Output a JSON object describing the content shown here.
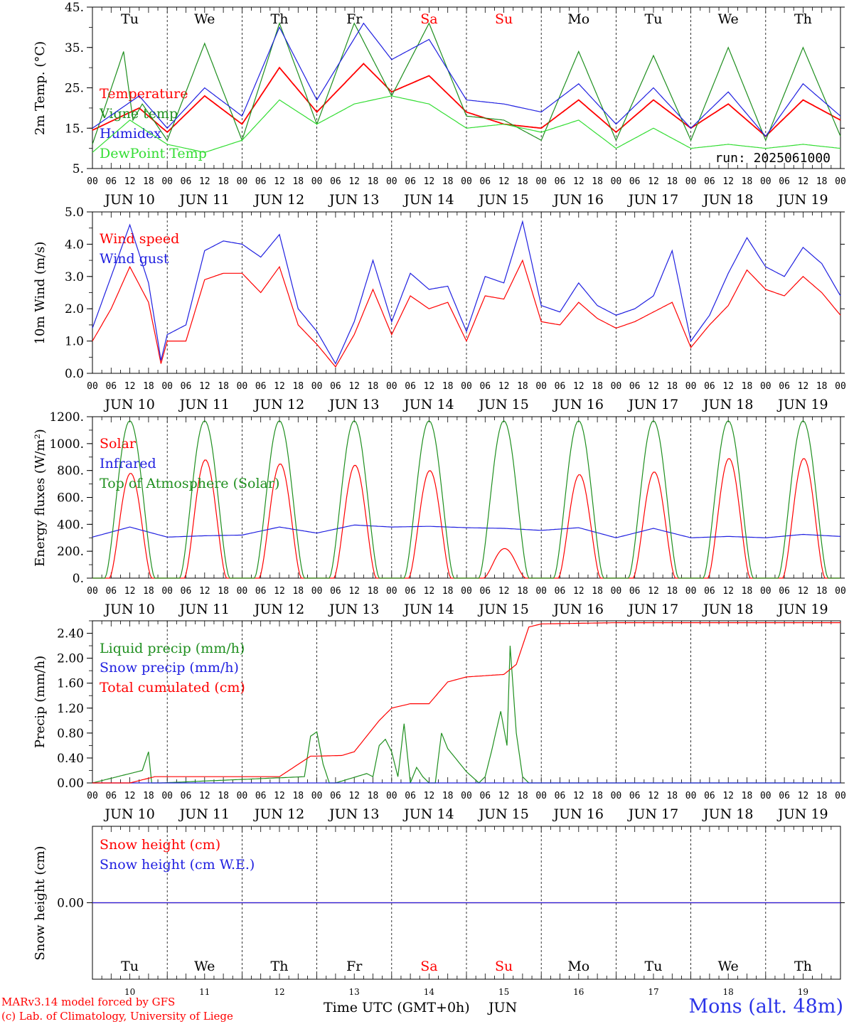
{
  "run": "run: 2025061000",
  "station": "Mons (alt. 48m)",
  "credits": [
    "MARv3.14 model forced by GFS",
    "(c) Lab. of Climatology, University of Liege"
  ],
  "time_axis_label": "Time UTC (GMT+0h)",
  "month_label": "JUN",
  "days": [
    {
      "abbr": "Tu",
      "date_label": "JUN 10",
      "num": "10",
      "weekend": false
    },
    {
      "abbr": "We",
      "date_label": "JUN 11",
      "num": "11",
      "weekend": false
    },
    {
      "abbr": "Th",
      "date_label": "JUN 12",
      "num": "12",
      "weekend": false
    },
    {
      "abbr": "Fr",
      "date_label": "JUN 13",
      "num": "13",
      "weekend": false
    },
    {
      "abbr": "Sa",
      "date_label": "JUN 14",
      "num": "14",
      "weekend": true
    },
    {
      "abbr": "Su",
      "date_label": "JUN 15",
      "num": "15",
      "weekend": true
    },
    {
      "abbr": "Mo",
      "date_label": "JUN 16",
      "num": "16",
      "weekend": false
    },
    {
      "abbr": "Tu",
      "date_label": "JUN 17",
      "num": "17",
      "weekend": false
    },
    {
      "abbr": "We",
      "date_label": "JUN 18",
      "num": "18",
      "weekend": false
    },
    {
      "abbr": "Th",
      "date_label": "JUN 19",
      "num": "19",
      "weekend": false
    }
  ],
  "hour_labels": [
    "00",
    "06",
    "12",
    "18"
  ],
  "colors": {
    "red": "#ff0000",
    "green": "#1f8f1f",
    "blue": "#2020e0",
    "lightgreen": "#33dd33",
    "weekend": "#ff0000"
  },
  "chart_data": [
    {
      "type": "line",
      "ylabel": "2m Temp. (°C)",
      "ylim": [
        5,
        45
      ],
      "yticks": [
        "5.",
        "15.",
        "25.",
        "35.",
        "45."
      ],
      "ytick_values": [
        5,
        15,
        25,
        35,
        45
      ],
      "x_start": "2025-06-10 00:00 UTC",
      "x_end": "2025-06-20 00:00 UTC",
      "legend_position": "left",
      "series": [
        {
          "name": "Temperature",
          "color": "#ff0000",
          "x": [
            0,
            15,
            24,
            36,
            48,
            60,
            72,
            87,
            96,
            108,
            120,
            132,
            144,
            156,
            168,
            180,
            192,
            204,
            216,
            228,
            240
          ],
          "y": [
            14.5,
            20,
            14,
            23,
            16,
            30,
            19,
            31,
            24,
            28,
            19,
            16,
            15,
            22,
            14,
            22,
            15,
            21,
            13,
            22,
            17
          ]
        },
        {
          "name": "Vigne temp",
          "color": "#1f8f1f",
          "x": [
            0,
            10,
            13,
            16,
            24,
            36,
            48,
            60,
            72,
            84,
            96,
            108,
            120,
            132,
            144,
            156,
            168,
            180,
            192,
            204,
            216,
            228,
            240
          ],
          "y": [
            11,
            34,
            17,
            21,
            12,
            36,
            12,
            41,
            16,
            41,
            23,
            41,
            18,
            17,
            12,
            34,
            12,
            33,
            12,
            35,
            12,
            35,
            13
          ]
        },
        {
          "name": "Humidex",
          "color": "#2020e0",
          "x": [
            0,
            15,
            24,
            36,
            48,
            60,
            72,
            87,
            96,
            108,
            120,
            132,
            144,
            156,
            168,
            180,
            192,
            204,
            216,
            228,
            240
          ],
          "y": [
            15,
            23,
            15,
            25,
            18,
            40,
            22,
            41,
            32,
            37,
            22,
            21,
            19,
            26,
            16,
            25,
            15,
            24,
            13,
            26,
            18
          ]
        },
        {
          "name": "DewPoint Temp",
          "color": "#33dd33",
          "x": [
            0,
            12,
            24,
            36,
            48,
            60,
            72,
            84,
            96,
            108,
            120,
            132,
            144,
            156,
            168,
            180,
            192,
            204,
            216,
            228,
            240
          ],
          "y": [
            9,
            17,
            11,
            9,
            12,
            22,
            16,
            21,
            23,
            21,
            15,
            16,
            14,
            17,
            10,
            15,
            10,
            11,
            10,
            11,
            10
          ]
        }
      ]
    },
    {
      "type": "line",
      "ylabel": "10m Wind (m/s)",
      "ylim": [
        0,
        5
      ],
      "yticks": [
        "0.0",
        "1.0",
        "2.0",
        "3.0",
        "4.0",
        "5.0"
      ],
      "ytick_values": [
        0,
        1,
        2,
        3,
        4,
        5
      ],
      "x_start": "2025-06-10 00:00 UTC",
      "x_end": "2025-06-20 00:00 UTC",
      "legend_position": "left",
      "series": [
        {
          "name": "Wind speed",
          "color": "#ff0000",
          "x": [
            0,
            6,
            12,
            18,
            22,
            24,
            30,
            36,
            42,
            48,
            54,
            60,
            66,
            72,
            78,
            84,
            90,
            96,
            102,
            108,
            114,
            120,
            126,
            132,
            138,
            144,
            150,
            156,
            162,
            168,
            174,
            180,
            186,
            192,
            198,
            204,
            210,
            216,
            222,
            228,
            234,
            240
          ],
          "y": [
            1,
            2,
            3.3,
            2.2,
            0.3,
            1,
            1,
            2.9,
            3.1,
            3.1,
            2.5,
            3.3,
            1.5,
            0.9,
            0.2,
            1.2,
            2.6,
            1.2,
            2.4,
            2,
            2.2,
            1,
            2.4,
            2.3,
            3.5,
            1.6,
            1.5,
            2.2,
            1.7,
            1.4,
            1.6,
            1.9,
            2.2,
            0.8,
            1.5,
            2.1,
            3.2,
            2.6,
            2.4,
            3,
            2.5,
            1.8
          ]
        },
        {
          "name": "Wind gust",
          "color": "#2020e0",
          "x": [
            0,
            6,
            12,
            18,
            22,
            24,
            30,
            36,
            42,
            48,
            54,
            60,
            66,
            72,
            78,
            84,
            90,
            96,
            102,
            108,
            114,
            120,
            126,
            132,
            138,
            144,
            150,
            156,
            162,
            168,
            174,
            180,
            186,
            192,
            198,
            204,
            210,
            216,
            222,
            228,
            234,
            240
          ],
          "y": [
            1.4,
            3,
            4.6,
            2.8,
            0.4,
            1.2,
            1.5,
            3.8,
            4.1,
            4,
            3.6,
            4.3,
            2,
            1.3,
            0.3,
            1.6,
            3.5,
            1.6,
            3.1,
            2.6,
            2.7,
            1.3,
            3,
            2.8,
            4.7,
            2.1,
            1.9,
            2.8,
            2.1,
            1.8,
            2,
            2.4,
            3.8,
            1,
            1.8,
            3.1,
            4.2,
            3.3,
            3,
            3.9,
            3.4,
            2.4
          ]
        }
      ]
    },
    {
      "type": "line",
      "ylabel": "Energy fluxes (W/m²)",
      "ylim": [
        0,
        1200
      ],
      "yticks": [
        "0.",
        "200.",
        "400.",
        "600.",
        "800.",
        "1000.",
        "1200."
      ],
      "ytick_values": [
        0,
        200,
        400,
        600,
        800,
        1000,
        1200
      ],
      "x_start": "2025-06-10 00:00 UTC",
      "x_end": "2025-06-20 00:00 UTC",
      "legend_position": "left",
      "series": [
        {
          "name": "Solar",
          "color": "#ff0000",
          "daily_peak": [
            780,
            880,
            850,
            840,
            800,
            220,
            770,
            790,
            890,
            890
          ]
        },
        {
          "name": "Infrared",
          "color": "#2020e0",
          "x": [
            0,
            12,
            24,
            36,
            48,
            60,
            72,
            84,
            96,
            108,
            120,
            132,
            144,
            156,
            168,
            180,
            192,
            204,
            216,
            228,
            240
          ],
          "y": [
            305,
            380,
            305,
            315,
            320,
            380,
            335,
            395,
            380,
            385,
            375,
            370,
            355,
            375,
            300,
            370,
            300,
            310,
            300,
            325,
            310
          ]
        },
        {
          "name": "Top of Atmosphere (Solar)",
          "color": "#1f8f1f",
          "daily_peak": [
            1170,
            1170,
            1170,
            1170,
            1170,
            1170,
            1170,
            1170,
            1170,
            1170
          ]
        }
      ]
    },
    {
      "type": "line",
      "ylabel": "Precip (mm/h)",
      "ylim": [
        0,
        2.6
      ],
      "yticks": [
        "0.00",
        "0.40",
        "0.80",
        "1.20",
        "1.60",
        "2.00",
        "2.40"
      ],
      "ytick_values": [
        0,
        0.4,
        0.8,
        1.2,
        1.6,
        2.0,
        2.4
      ],
      "x_start": "2025-06-10 00:00 UTC",
      "x_end": "2025-06-20 00:00 UTC",
      "legend_position": "left",
      "series": [
        {
          "name": "Liquid precip (mm/h)",
          "color": "#1f8f1f",
          "x": [
            0,
            16,
            18,
            19,
            20,
            22,
            68,
            70,
            72,
            74,
            76,
            78,
            88,
            90,
            92,
            94,
            96,
            98,
            100,
            102,
            104,
            106,
            108,
            110,
            112,
            114,
            120,
            124,
            126,
            128,
            131,
            133,
            134,
            136,
            138,
            140,
            142,
            240
          ],
          "y": [
            0,
            0.2,
            0.5,
            0,
            0,
            0,
            0.1,
            0.75,
            0.82,
            0.3,
            0,
            0,
            0.15,
            0.1,
            0.6,
            0.7,
            0.5,
            0.1,
            0.95,
            0,
            0.25,
            0.1,
            0,
            0,
            0.8,
            0.55,
            0.18,
            0,
            0.1,
            0.5,
            1.15,
            0.6,
            2.2,
            0.8,
            0.1,
            0,
            0,
            0
          ]
        },
        {
          "name": "Snow precip (mm/h)",
          "color": "#2020e0",
          "x": [
            0,
            240
          ],
          "y": [
            0,
            0
          ]
        },
        {
          "name": "Total cumulated (cm)",
          "color": "#ff0000",
          "x": [
            0,
            12,
            20,
            24,
            48,
            60,
            70,
            72,
            80,
            84,
            92,
            96,
            102,
            108,
            114,
            120,
            132,
            136,
            140,
            144,
            168,
            240
          ],
          "y": [
            0,
            0,
            0.1,
            0.1,
            0.1,
            0.1,
            0.43,
            0.43,
            0.44,
            0.5,
            1.0,
            1.2,
            1.27,
            1.27,
            1.62,
            1.7,
            1.74,
            1.9,
            2.5,
            2.55,
            2.57,
            2.57
          ]
        }
      ]
    },
    {
      "type": "line",
      "ylabel": "Snow height (cm)",
      "ylim": [
        -1,
        1
      ],
      "yticks": [
        "0.00"
      ],
      "ytick_values": [
        0
      ],
      "x_start": "2025-06-10 00:00 UTC",
      "x_end": "2025-06-20 00:00 UTC",
      "legend_position": "left",
      "series": [
        {
          "name": "Snow height (cm)",
          "color": "#ff0000",
          "x": [
            0,
            240
          ],
          "y": [
            0,
            0
          ]
        },
        {
          "name": "Snow height (cm W.E.)",
          "color": "#2020e0",
          "x": [
            0,
            240
          ],
          "y": [
            0,
            0
          ]
        }
      ]
    }
  ]
}
